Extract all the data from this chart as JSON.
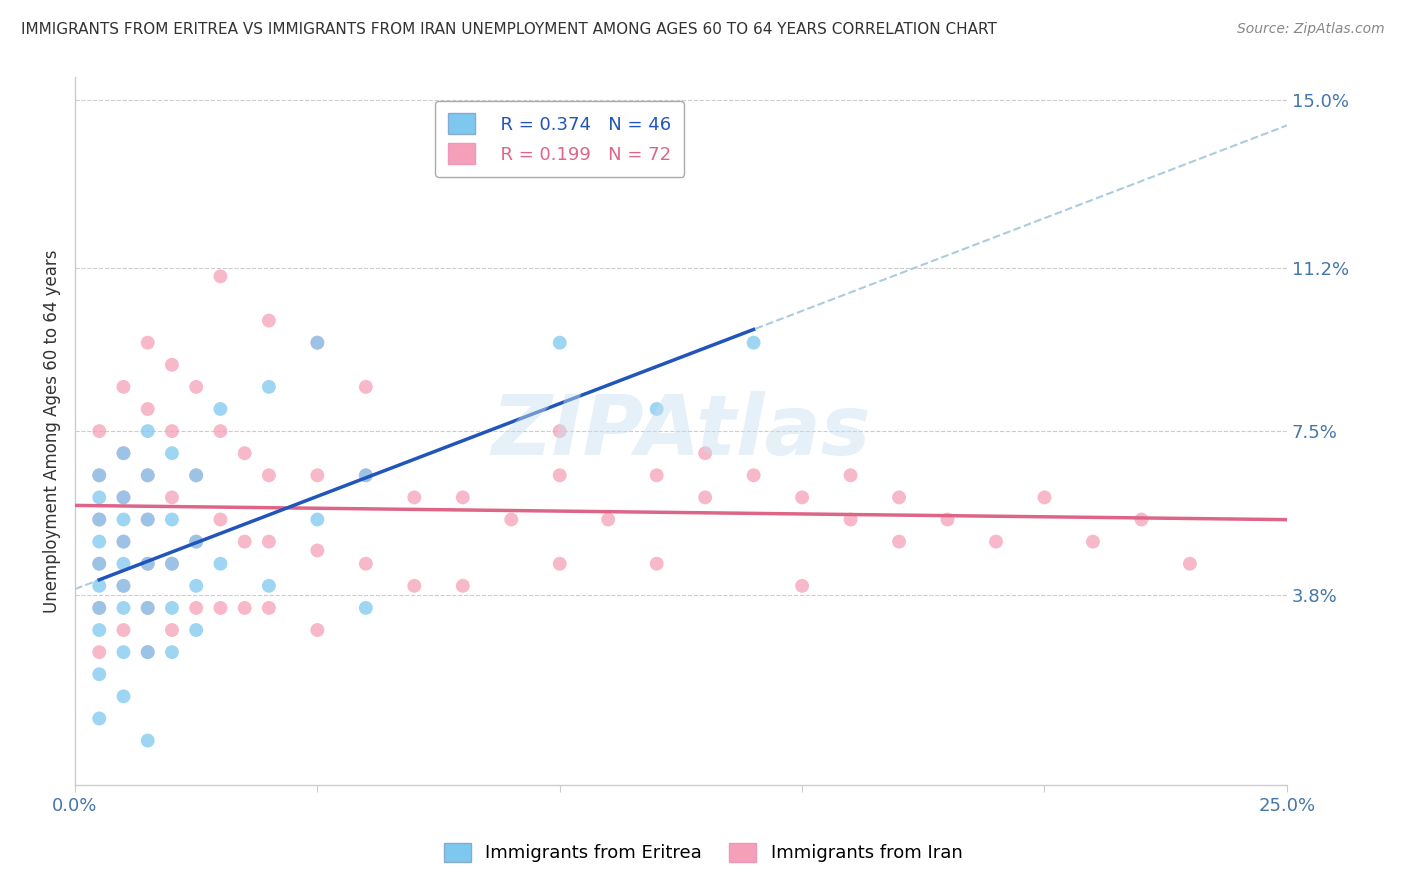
{
  "title": "IMMIGRANTS FROM ERITREA VS IMMIGRANTS FROM IRAN UNEMPLOYMENT AMONG AGES 60 TO 64 YEARS CORRELATION CHART",
  "source": "Source: ZipAtlas.com",
  "ylabel": "Unemployment Among Ages 60 to 64 years",
  "xlim": [
    0.0,
    0.25
  ],
  "ylim": [
    -0.005,
    0.155
  ],
  "xticks": [
    0.0,
    0.05,
    0.1,
    0.15,
    0.2,
    0.25
  ],
  "xticklabels_show": [
    "0.0%",
    "25.0%"
  ],
  "right_yticks": [
    0.0,
    0.038,
    0.075,
    0.112,
    0.15
  ],
  "right_yticklabels": [
    "",
    "3.8%",
    "7.5%",
    "11.2%",
    "15.0%"
  ],
  "legend_eritrea_R": "0.374",
  "legend_eritrea_N": "46",
  "legend_iran_R": "0.199",
  "legend_iran_N": "72",
  "eritrea_color": "#7EC8F0",
  "iran_color": "#F5A0B8",
  "eritrea_trend_color": "#2255BB",
  "iran_trend_color": "#DD6688",
  "watermark": "ZIPAtlas",
  "background_color": "#FFFFFF",
  "grid_color": "#CCCCCC",
  "eritrea_x": [
    0.005,
    0.005,
    0.005,
    0.005,
    0.005,
    0.005,
    0.005,
    0.005,
    0.005,
    0.005,
    0.01,
    0.01,
    0.01,
    0.01,
    0.01,
    0.01,
    0.01,
    0.01,
    0.01,
    0.015,
    0.015,
    0.015,
    0.015,
    0.015,
    0.015,
    0.015,
    0.02,
    0.02,
    0.02,
    0.02,
    0.02,
    0.025,
    0.025,
    0.025,
    0.025,
    0.03,
    0.03,
    0.04,
    0.04,
    0.05,
    0.05,
    0.06,
    0.06,
    0.1,
    0.12,
    0.14
  ],
  "eritrea_y": [
    0.065,
    0.06,
    0.055,
    0.05,
    0.045,
    0.04,
    0.035,
    0.03,
    0.02,
    0.01,
    0.07,
    0.06,
    0.055,
    0.05,
    0.045,
    0.04,
    0.035,
    0.025,
    0.015,
    0.075,
    0.065,
    0.055,
    0.045,
    0.035,
    0.025,
    0.005,
    0.07,
    0.055,
    0.045,
    0.035,
    0.025,
    0.065,
    0.05,
    0.04,
    0.03,
    0.08,
    0.045,
    0.085,
    0.04,
    0.095,
    0.055,
    0.065,
    0.035,
    0.095,
    0.08,
    0.095
  ],
  "iran_x": [
    0.005,
    0.005,
    0.005,
    0.005,
    0.005,
    0.005,
    0.01,
    0.01,
    0.01,
    0.01,
    0.01,
    0.01,
    0.015,
    0.015,
    0.015,
    0.015,
    0.015,
    0.015,
    0.015,
    0.02,
    0.02,
    0.02,
    0.02,
    0.02,
    0.025,
    0.025,
    0.025,
    0.025,
    0.03,
    0.03,
    0.03,
    0.035,
    0.035,
    0.035,
    0.04,
    0.04,
    0.04,
    0.05,
    0.05,
    0.05,
    0.06,
    0.06,
    0.07,
    0.07,
    0.08,
    0.08,
    0.09,
    0.1,
    0.1,
    0.11,
    0.12,
    0.12,
    0.13,
    0.14,
    0.15,
    0.15,
    0.16,
    0.17,
    0.18,
    0.19,
    0.2,
    0.21,
    0.22,
    0.23,
    0.03,
    0.04,
    0.05,
    0.06,
    0.1,
    0.13,
    0.16,
    0.17
  ],
  "iran_y": [
    0.075,
    0.065,
    0.055,
    0.045,
    0.035,
    0.025,
    0.085,
    0.07,
    0.06,
    0.05,
    0.04,
    0.03,
    0.095,
    0.08,
    0.065,
    0.055,
    0.045,
    0.035,
    0.025,
    0.09,
    0.075,
    0.06,
    0.045,
    0.03,
    0.085,
    0.065,
    0.05,
    0.035,
    0.075,
    0.055,
    0.035,
    0.07,
    0.05,
    0.035,
    0.065,
    0.05,
    0.035,
    0.065,
    0.048,
    0.03,
    0.065,
    0.045,
    0.06,
    0.04,
    0.06,
    0.04,
    0.055,
    0.065,
    0.045,
    0.055,
    0.065,
    0.045,
    0.06,
    0.065,
    0.06,
    0.04,
    0.055,
    0.05,
    0.055,
    0.05,
    0.06,
    0.05,
    0.055,
    0.045,
    0.11,
    0.1,
    0.095,
    0.085,
    0.075,
    0.07,
    0.065,
    0.06
  ]
}
